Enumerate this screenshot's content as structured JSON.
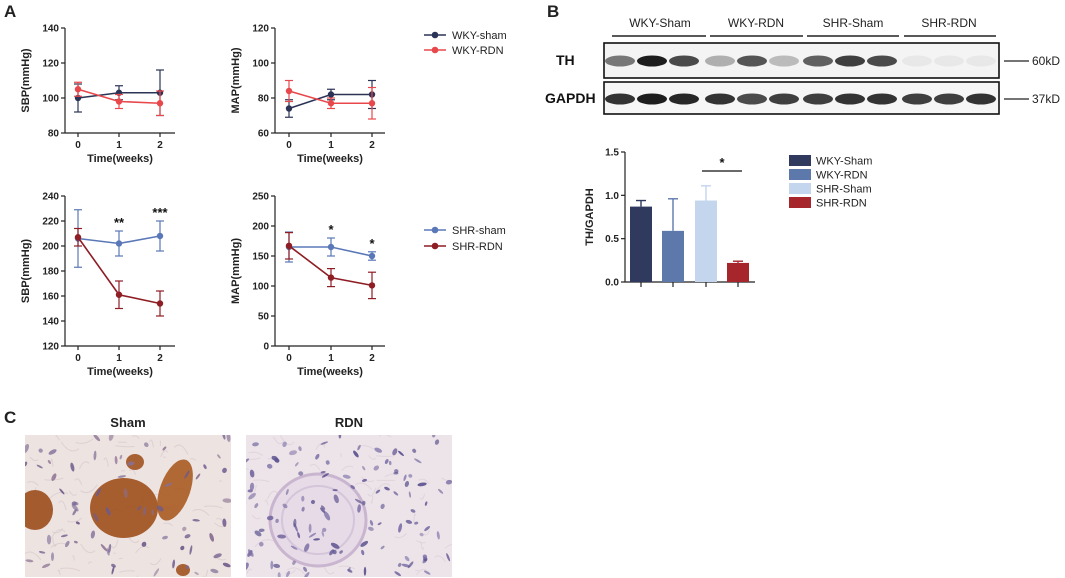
{
  "panels": {
    "a": "A",
    "b": "B",
    "c": "C"
  },
  "colors": {
    "wky_sham": "#2b3456",
    "wky_rdn": "#e8484b",
    "shr_sham": "#5a78b8",
    "shr_rdn": "#8e1d24",
    "bar_wky_sham": "#2f3a5e",
    "bar_wky_rdn": "#5d78ab",
    "bar_shr_sham": "#c3d6ee",
    "bar_shr_rdn": "#a7262c",
    "stain_brown": "#a0521f",
    "tissue_bg": "#ede3e1"
  },
  "chart_data": [
    {
      "id": "wky_sbp",
      "type": "line",
      "x": [
        0,
        1,
        2
      ],
      "xticks": [
        "0",
        "1",
        "2"
      ],
      "xlabel": "Time(weeks)",
      "ylabel": "SBP(mmHg)",
      "ylim": [
        80,
        140
      ],
      "yticks": [
        "80",
        "100",
        "120",
        "140"
      ],
      "ytick_values": [
        80,
        100,
        120,
        140
      ],
      "series": [
        {
          "name": "WKY-sham",
          "color_key": "wky_sham",
          "values": [
            100,
            103,
            103
          ],
          "err": [
            8,
            4,
            13
          ]
        },
        {
          "name": "WKY-RDN",
          "color_key": "wky_rdn",
          "values": [
            105,
            98,
            97
          ],
          "err": [
            4,
            4,
            7
          ]
        }
      ],
      "annotations": []
    },
    {
      "id": "wky_map",
      "type": "line",
      "x": [
        0,
        1,
        2
      ],
      "xticks": [
        "0",
        "1",
        "2"
      ],
      "xlabel": "Time(weeks)",
      "ylabel": "MAP(mmHg)",
      "ylim": [
        60,
        120
      ],
      "yticks": [
        "60",
        "80",
        "100",
        "120"
      ],
      "ytick_values": [
        60,
        80,
        100,
        120
      ],
      "series": [
        {
          "name": "WKY-sham",
          "color_key": "wky_sham",
          "values": [
            74,
            82,
            82
          ],
          "err": [
            5,
            3,
            8
          ]
        },
        {
          "name": "WKY-RDN",
          "color_key": "wky_rdn",
          "values": [
            84,
            77,
            77
          ],
          "err": [
            6,
            3,
            9
          ]
        }
      ],
      "annotations": []
    },
    {
      "id": "shr_sbp",
      "type": "line",
      "x": [
        0,
        1,
        2
      ],
      "xticks": [
        "0",
        "1",
        "2"
      ],
      "xlabel": "Time(weeks)",
      "ylabel": "SBP(mmHg)",
      "ylim": [
        120,
        240
      ],
      "yticks": [
        "120",
        "140",
        "160",
        "180",
        "200",
        "220",
        "240"
      ],
      "ytick_values": [
        120,
        140,
        160,
        180,
        200,
        220,
        240
      ],
      "series": [
        {
          "name": "SHR-sham",
          "color_key": "shr_sham",
          "values": [
            206,
            202,
            208
          ],
          "err": [
            23,
            10,
            12
          ]
        },
        {
          "name": "SHR-RDN",
          "color_key": "shr_rdn",
          "values": [
            207,
            161,
            154
          ],
          "err": [
            7,
            11,
            10
          ]
        }
      ],
      "annotations": [
        {
          "x": 1,
          "text": "**"
        },
        {
          "x": 2,
          "text": "***"
        }
      ]
    },
    {
      "id": "shr_map",
      "type": "line",
      "x": [
        0,
        1,
        2
      ],
      "xticks": [
        "0",
        "1",
        "2"
      ],
      "xlabel": "Time(weeks)",
      "ylabel": "MAP(mmHg)",
      "ylim": [
        0,
        250
      ],
      "yticks": [
        "0",
        "50",
        "100",
        "150",
        "200",
        "250"
      ],
      "ytick_values": [
        0,
        50,
        100,
        150,
        200,
        250
      ],
      "series": [
        {
          "name": "SHR-sham",
          "color_key": "shr_sham",
          "values": [
            165,
            165,
            150
          ],
          "err": [
            25,
            15,
            7
          ]
        },
        {
          "name": "SHR-RDN",
          "color_key": "shr_rdn",
          "values": [
            167,
            114,
            101
          ],
          "err": [
            22,
            15,
            22
          ]
        }
      ],
      "annotations": [
        {
          "x": 1,
          "text": "*"
        },
        {
          "x": 2,
          "text": "*"
        }
      ]
    },
    {
      "id": "th_bar",
      "type": "bar",
      "categories": [
        "WKY-Sham",
        "WKY-RDN",
        "SHR-Sham",
        "SHR-RDN"
      ],
      "values": [
        0.87,
        0.59,
        0.94,
        0.22
      ],
      "err": [
        0.07,
        0.37,
        0.17,
        0.02
      ],
      "color_keys": [
        "bar_wky_sham",
        "bar_wky_rdn",
        "bar_shr_sham",
        "bar_shr_rdn"
      ],
      "ylabel": "TH/GAPDH",
      "xlabel": "",
      "ylim": [
        0,
        1.5
      ],
      "yticks": [
        "0.0",
        "0.5",
        "1.0",
        "1.5"
      ],
      "ytick_values": [
        0,
        0.5,
        1.0,
        1.5
      ],
      "legend": "right",
      "significance": {
        "from": 2,
        "to": 3,
        "text": "*"
      }
    }
  ],
  "legends": {
    "top": [
      "WKY-sham",
      "WKY-RDN"
    ],
    "bottom": [
      "SHR-sham",
      "SHR-RDN"
    ]
  },
  "blot": {
    "groups": [
      "WKY-Sham",
      "WKY-RDN",
      "SHR-Sham",
      "SHR-RDN"
    ],
    "rows": [
      {
        "label": "TH",
        "size": "60kD",
        "intensity": [
          0.55,
          0.95,
          0.75,
          0.3,
          0.7,
          0.25,
          0.65,
          0.8,
          0.75,
          0.05,
          0.05,
          0.05
        ]
      },
      {
        "label": "GAPDH",
        "size": "37kD",
        "intensity": [
          0.85,
          0.95,
          0.9,
          0.85,
          0.75,
          0.8,
          0.8,
          0.85,
          0.85,
          0.8,
          0.8,
          0.85
        ]
      }
    ]
  },
  "histology": {
    "left_title": "Sham",
    "right_title": "RDN"
  }
}
